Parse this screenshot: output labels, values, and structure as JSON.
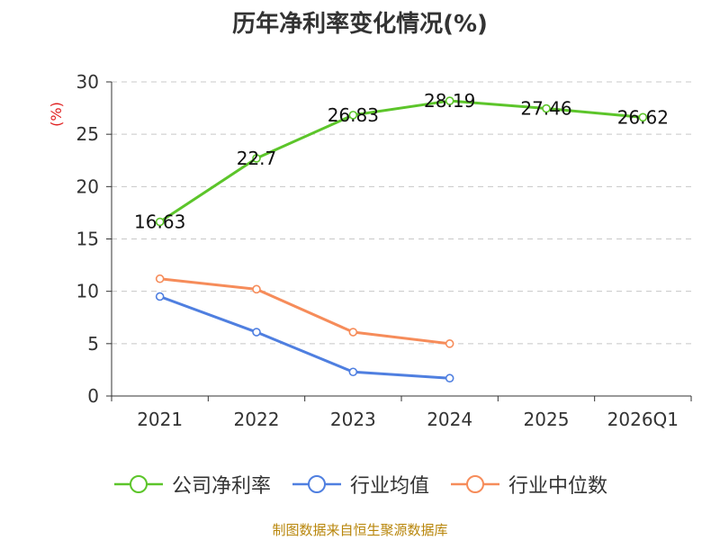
{
  "chart_data": {
    "type": "line",
    "title": "历年净利率变化情况(%)",
    "ylabel": "(%)",
    "xlabel": "",
    "categories": [
      "2021",
      "2022",
      "2023",
      "2024",
      "2025",
      "2026Q1"
    ],
    "ylim": [
      0,
      30
    ],
    "yticks": [
      0,
      5,
      10,
      15,
      20,
      25,
      30
    ],
    "grid": true,
    "legend_position": "bottom",
    "series": [
      {
        "name": "公司净利率",
        "color": "#5cc52a",
        "values": [
          16.63,
          22.7,
          26.83,
          28.19,
          27.46,
          26.62
        ],
        "labels": [
          "16.63",
          "22.7",
          "26.83",
          "28.19",
          "27.46",
          "26.62"
        ]
      },
      {
        "name": "行业均值",
        "color": "#4f7fe0",
        "values": [
          9.5,
          6.1,
          2.3,
          1.7,
          null,
          null
        ]
      },
      {
        "name": "行业中位数",
        "color": "#f68c5a",
        "values": [
          11.2,
          10.2,
          6.1,
          5.0,
          null,
          null
        ]
      }
    ]
  },
  "source": "制图数据来自恒生聚源数据库"
}
